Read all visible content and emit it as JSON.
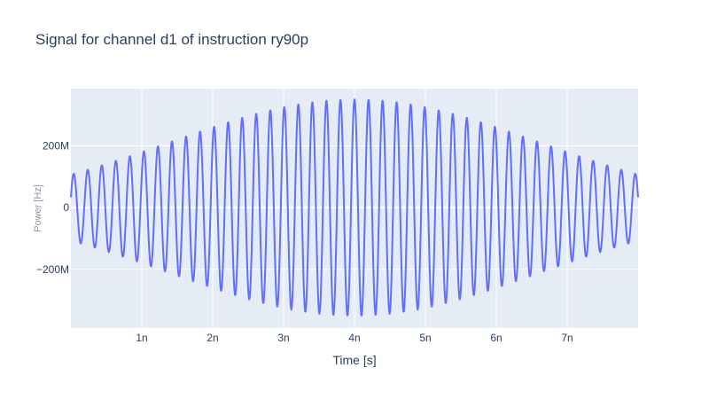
{
  "chart_data": {
    "type": "line",
    "title": "Signal for channel d1 of instruction ry90p",
    "xlabel": "Time [s]",
    "ylabel": "Power [Hz]",
    "xlim": [
      0,
      8e-09
    ],
    "ylim": [
      -390000000,
      385000000
    ],
    "x_ticks": [
      {
        "value": 1e-09,
        "label": "1n"
      },
      {
        "value": 2e-09,
        "label": "2n"
      },
      {
        "value": 3e-09,
        "label": "3n"
      },
      {
        "value": 4e-09,
        "label": "4n"
      },
      {
        "value": 5e-09,
        "label": "5n"
      },
      {
        "value": 6e-09,
        "label": "6n"
      },
      {
        "value": 7e-09,
        "label": "7n"
      }
    ],
    "y_ticks": [
      {
        "value": 200000000,
        "label": "200M"
      },
      {
        "value": 0,
        "label": "0"
      },
      {
        "value": -200000000,
        "label": "−200M"
      }
    ],
    "grid": true,
    "series": [
      {
        "color": "#636efa",
        "signal": {
          "form": "gaussian-modulated cosine",
          "peak_amplitude": 350000000,
          "center": 4e-09,
          "sigma": 2.6e-09,
          "frequency": 5050000000.0,
          "samples": 1600
        }
      }
    ]
  }
}
